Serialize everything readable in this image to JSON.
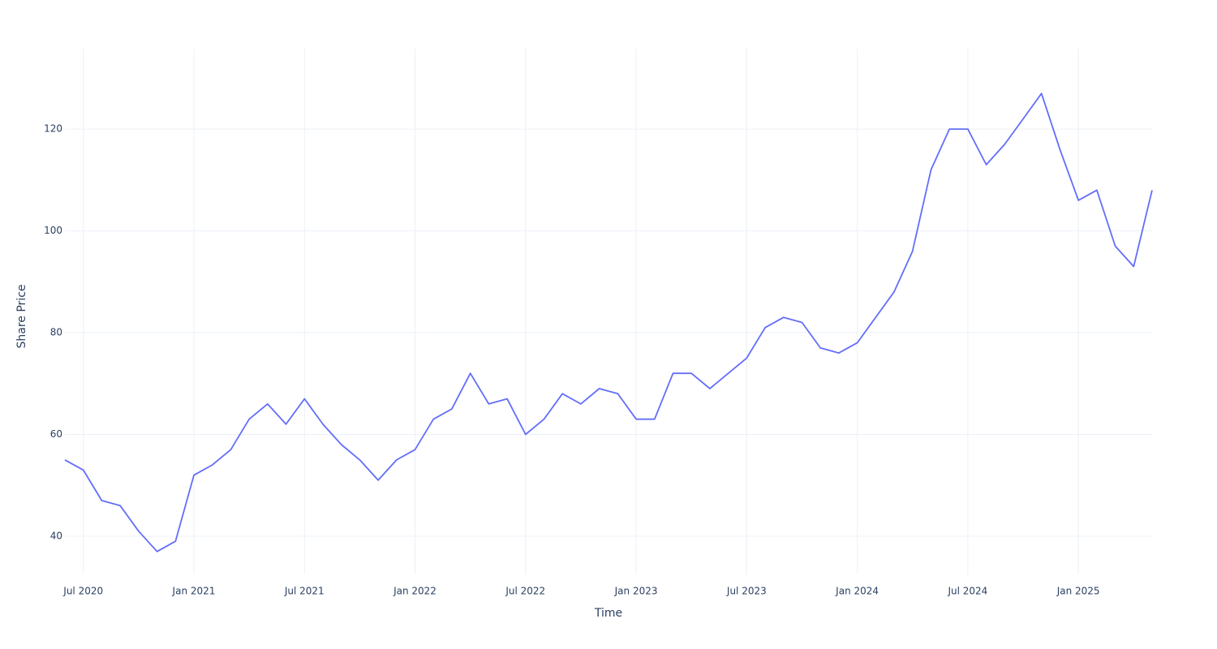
{
  "chart_data": {
    "type": "line",
    "xlabel": "Time",
    "ylabel": "Share Price",
    "x": [
      "2020-06",
      "2020-07",
      "2020-08",
      "2020-09",
      "2020-10",
      "2020-11",
      "2020-12",
      "2021-01",
      "2021-02",
      "2021-03",
      "2021-04",
      "2021-05",
      "2021-06",
      "2021-07",
      "2021-08",
      "2021-09",
      "2021-10",
      "2021-11",
      "2021-12",
      "2022-01",
      "2022-02",
      "2022-03",
      "2022-04",
      "2022-05",
      "2022-06",
      "2022-07",
      "2022-08",
      "2022-09",
      "2022-10",
      "2022-11",
      "2022-12",
      "2023-01",
      "2023-02",
      "2023-03",
      "2023-04",
      "2023-05",
      "2023-06",
      "2023-07",
      "2023-08",
      "2023-09",
      "2023-10",
      "2023-11",
      "2023-12",
      "2024-01",
      "2024-02",
      "2024-03",
      "2024-04",
      "2024-05",
      "2024-06",
      "2024-07",
      "2024-08",
      "2024-09",
      "2024-10",
      "2024-11",
      "2024-12",
      "2025-01",
      "2025-02",
      "2025-03",
      "2025-04",
      "2025-05"
    ],
    "series": [
      {
        "name": "Share Price",
        "color": "#636efa",
        "values": [
          55,
          53,
          47,
          46,
          41,
          37,
          39,
          52,
          54,
          57,
          63,
          66,
          62,
          67,
          62,
          58,
          55,
          51,
          55,
          57,
          63,
          65,
          72,
          66,
          67,
          60,
          63,
          68,
          66,
          69,
          68,
          63,
          63,
          72,
          72,
          69,
          72,
          75,
          81,
          83,
          82,
          77,
          76,
          78,
          83,
          88,
          96,
          112,
          120,
          120,
          113,
          117,
          122,
          127,
          116,
          106,
          108,
          97,
          93,
          108
        ]
      }
    ],
    "xlim": [
      "2020-06",
      "2025-05"
    ],
    "xticks": [
      {
        "value": "2020-07",
        "label": "Jul 2020"
      },
      {
        "value": "2021-01",
        "label": "Jan 2021"
      },
      {
        "value": "2021-07",
        "label": "Jul 2021"
      },
      {
        "value": "2022-01",
        "label": "Jan 2022"
      },
      {
        "value": "2022-07",
        "label": "Jul 2022"
      },
      {
        "value": "2023-01",
        "label": "Jan 2023"
      },
      {
        "value": "2023-07",
        "label": "Jul 2023"
      },
      {
        "value": "2024-01",
        "label": "Jan 2024"
      },
      {
        "value": "2024-07",
        "label": "Jul 2024"
      },
      {
        "value": "2025-01",
        "label": "Jan 2025"
      }
    ],
    "ylim": [
      32.5,
      135.8
    ],
    "yticks": [
      40,
      60,
      80,
      100,
      120
    ],
    "grid": true
  }
}
